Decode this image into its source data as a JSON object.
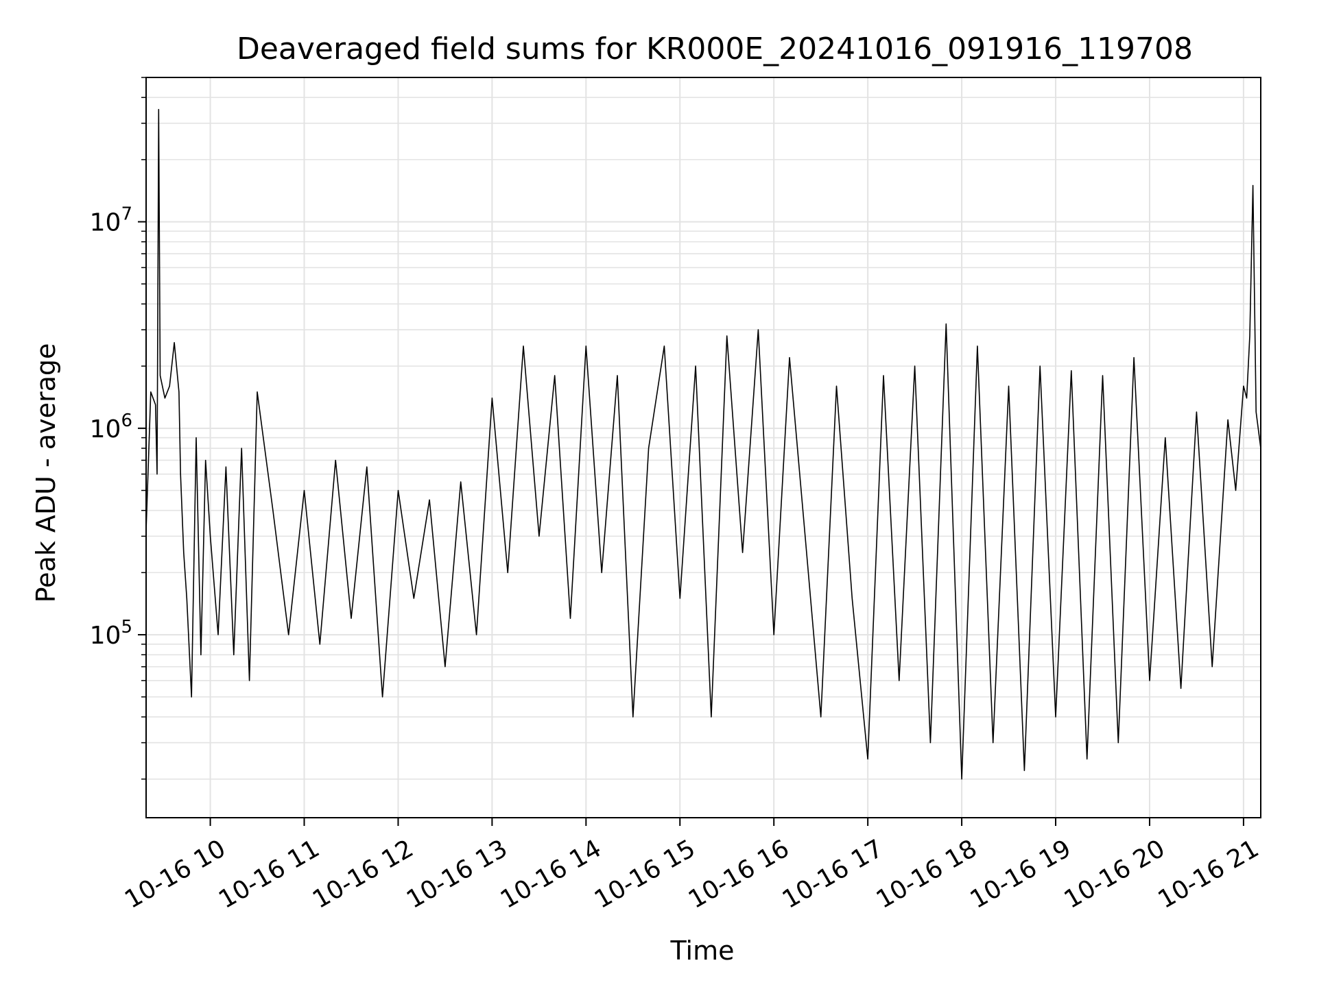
{
  "chart_data": {
    "type": "line",
    "title": "Deaveraged field sums for KR000E_20241016_091916_119708",
    "xlabel": "Time",
    "ylabel": "Peak ADU - average",
    "y_scale": "log",
    "ylim": [
      13000,
      50000000
    ],
    "xlim": [
      "2024-10-16 09:19:16",
      "2024-10-16 21:11:00"
    ],
    "grid": true,
    "line_color": "#000000",
    "x_ticks": [
      {
        "value": "2024-10-16 10:00",
        "label": "10-16 10"
      },
      {
        "value": "2024-10-16 11:00",
        "label": "10-16 11"
      },
      {
        "value": "2024-10-16 12:00",
        "label": "10-16 12"
      },
      {
        "value": "2024-10-16 13:00",
        "label": "10-16 13"
      },
      {
        "value": "2024-10-16 14:00",
        "label": "10-16 14"
      },
      {
        "value": "2024-10-16 15:00",
        "label": "10-16 15"
      },
      {
        "value": "2024-10-16 16:00",
        "label": "10-16 16"
      },
      {
        "value": "2024-10-16 17:00",
        "label": "10-16 17"
      },
      {
        "value": "2024-10-16 18:00",
        "label": "10-16 18"
      },
      {
        "value": "2024-10-16 19:00",
        "label": "10-16 19"
      },
      {
        "value": "2024-10-16 20:00",
        "label": "10-16 20"
      },
      {
        "value": "2024-10-16 21:00",
        "label": "10-16 21"
      }
    ],
    "y_ticks": [
      {
        "value": 100000,
        "base": "10",
        "exp": "5"
      },
      {
        "value": 1000000,
        "base": "10",
        "exp": "6"
      },
      {
        "value": 10000000,
        "base": "10",
        "exp": "7"
      }
    ],
    "series": [
      {
        "x": [
          "2024-10-16 09:19",
          "2024-10-16 09:22",
          "2024-10-16 09:25",
          "2024-10-16 09:26",
          "2024-10-16 09:27",
          "2024-10-16 09:28",
          "2024-10-16 09:31",
          "2024-10-16 09:34",
          "2024-10-16 09:37",
          "2024-10-16 09:40",
          "2024-10-16 09:41",
          "2024-10-16 09:43",
          "2024-10-16 09:45",
          "2024-10-16 09:48",
          "2024-10-16 09:51",
          "2024-10-16 09:54",
          "2024-10-16 09:57",
          "2024-10-16 10:00",
          "2024-10-16 10:05",
          "2024-10-16 10:10",
          "2024-10-16 10:15",
          "2024-10-16 10:20",
          "2024-10-16 10:25",
          "2024-10-16 10:30",
          "2024-10-16 10:40",
          "2024-10-16 10:50",
          "2024-10-16 11:00",
          "2024-10-16 11:10",
          "2024-10-16 11:20",
          "2024-10-16 11:30",
          "2024-10-16 11:40",
          "2024-10-16 11:50",
          "2024-10-16 12:00",
          "2024-10-16 12:10",
          "2024-10-16 12:20",
          "2024-10-16 12:30",
          "2024-10-16 12:40",
          "2024-10-16 12:50",
          "2024-10-16 13:00",
          "2024-10-16 13:10",
          "2024-10-16 13:20",
          "2024-10-16 13:30",
          "2024-10-16 13:40",
          "2024-10-16 13:50",
          "2024-10-16 14:00",
          "2024-10-16 14:10",
          "2024-10-16 14:20",
          "2024-10-16 14:30",
          "2024-10-16 14:40",
          "2024-10-16 14:50",
          "2024-10-16 15:00",
          "2024-10-16 15:10",
          "2024-10-16 15:20",
          "2024-10-16 15:30",
          "2024-10-16 15:40",
          "2024-10-16 15:50",
          "2024-10-16 16:00",
          "2024-10-16 16:10",
          "2024-10-16 16:20",
          "2024-10-16 16:30",
          "2024-10-16 16:40",
          "2024-10-16 16:50",
          "2024-10-16 17:00",
          "2024-10-16 17:10",
          "2024-10-16 17:20",
          "2024-10-16 17:30",
          "2024-10-16 17:40",
          "2024-10-16 17:50",
          "2024-10-16 18:00",
          "2024-10-16 18:10",
          "2024-10-16 18:20",
          "2024-10-16 18:30",
          "2024-10-16 18:40",
          "2024-10-16 18:50",
          "2024-10-16 19:00",
          "2024-10-16 19:10",
          "2024-10-16 19:20",
          "2024-10-16 19:30",
          "2024-10-16 19:40",
          "2024-10-16 19:50",
          "2024-10-16 20:00",
          "2024-10-16 20:10",
          "2024-10-16 20:20",
          "2024-10-16 20:30",
          "2024-10-16 20:40",
          "2024-10-16 20:50",
          "2024-10-16 20:55",
          "2024-10-16 21:00",
          "2024-10-16 21:02",
          "2024-10-16 21:04",
          "2024-10-16 21:06",
          "2024-10-16 21:08",
          "2024-10-16 21:11"
        ],
        "y": [
          320000,
          1500000,
          1300000,
          600000,
          35000000,
          1800000,
          1400000,
          1600000,
          2600000,
          1500000,
          600000,
          250000,
          150000,
          50000,
          900000,
          80000,
          700000,
          300000,
          100000,
          650000,
          80000,
          800000,
          60000,
          1500000,
          400000,
          100000,
          500000,
          90000,
          700000,
          120000,
          650000,
          50000,
          500000,
          150000,
          450000,
          70000,
          550000,
          100000,
          1400000,
          200000,
          2500000,
          300000,
          1800000,
          120000,
          2500000,
          200000,
          1800000,
          40000,
          800000,
          2500000,
          150000,
          2000000,
          40000,
          2800000,
          250000,
          3000000,
          100000,
          2200000,
          300000,
          40000,
          1600000,
          150000,
          25000,
          1800000,
          60000,
          2000000,
          30000,
          3200000,
          20000,
          2500000,
          30000,
          1600000,
          22000,
          2000000,
          40000,
          1900000,
          25000,
          1800000,
          30000,
          2200000,
          60000,
          900000,
          55000,
          1200000,
          70000,
          1100000,
          500000,
          1600000,
          1400000,
          2800000,
          15000000,
          1200000,
          800000
        ]
      }
    ]
  }
}
